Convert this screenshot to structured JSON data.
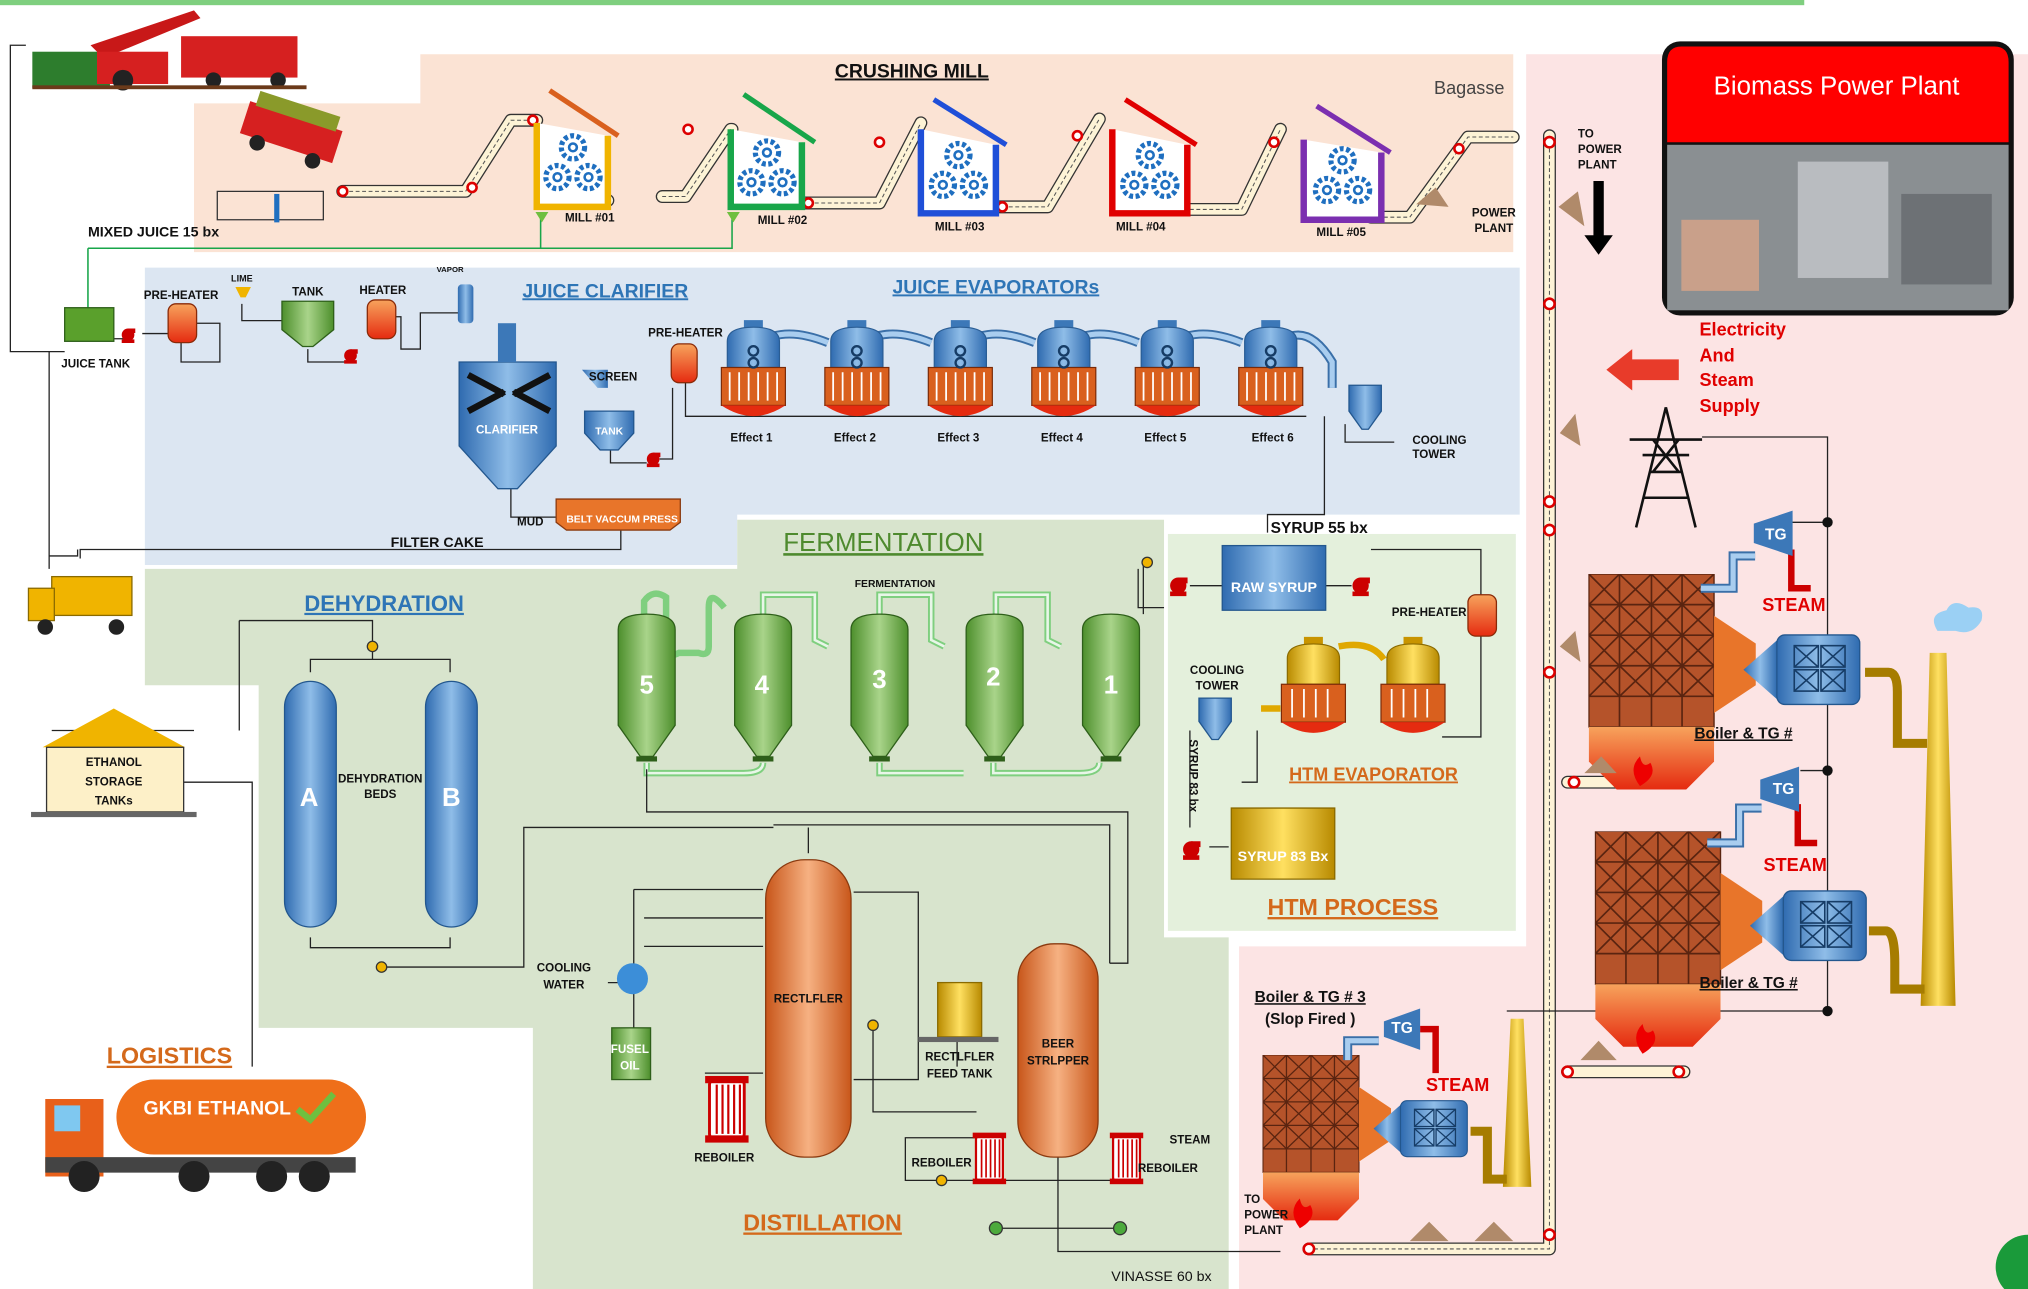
{
  "crushing_mill": {
    "title": "CRUSHING MILL",
    "bagasse": "Bagasse",
    "mills": [
      "MILL #01",
      "MILL #02",
      "MILL #03",
      "MILL #04",
      "MILL #05"
    ],
    "power_plant": [
      "POWER",
      "PLANT"
    ],
    "to_power_plant": [
      "TO",
      "POWER",
      "PLANT"
    ],
    "mixed_juice": "MIXED JUICE 15 bx"
  },
  "juice_clarifier": {
    "title": "JUICE CLARIFIER",
    "juice_tank": "JUICE TANK",
    "pre_heater": "PRE-HEATER",
    "lime": "LIME",
    "tank": "TANK",
    "heater": "HEATER",
    "vapor": "VAPOR",
    "clarifier": "CLARIFIER",
    "screen": "SCREEN",
    "screen_tank": "TANK",
    "mud": "MUD",
    "belt_press": "BELT VACCUM PRESS",
    "filter_cake": "FILTER CAKE"
  },
  "juice_evaporators": {
    "title": "JUICE EVAPORATORs",
    "pre_heater": "PRE-HEATER",
    "effects": [
      "Effect 1",
      "Effect 2",
      "Effect 3",
      "Effect 4",
      "Effect 5",
      "Effect 6"
    ],
    "cooling_tower": [
      "COOLING",
      "TOWER"
    ],
    "syrup": "SYRUP 55 bx"
  },
  "htm_process": {
    "title": "HTM PROCESS",
    "raw_syrup": "RAW SYRUP",
    "pre_heater": "PRE-HEATER",
    "cooling_tower": [
      "COOLING",
      "TOWER"
    ],
    "evaporator": "HTM EVAPORATOR",
    "syrup_line": "SYRUP 83 bx",
    "syrup_tank": "SYRUP 83 Bx"
  },
  "fermentation": {
    "title": "FERMENTATION",
    "label": "FERMENTATION",
    "tanks": [
      "5",
      "4",
      "3",
      "2",
      "1"
    ]
  },
  "dehydration": {
    "title": "DEHYDRATION",
    "beds": [
      "A",
      "B"
    ],
    "beds_label": [
      "DEHYDRATION",
      "BEDS"
    ]
  },
  "storage": {
    "label": [
      "ETHANOL",
      "STORAGE",
      "TANKs"
    ]
  },
  "logistics": {
    "title": "LOGISTICS",
    "truck": "GKBI ETHANOL"
  },
  "distillation": {
    "title": "DISTILLATION",
    "cooling_water": [
      "COOLING",
      "WATER"
    ],
    "fusel_oil": [
      "FUSEL",
      "OIL"
    ],
    "reboilers": [
      "REBOILER",
      "REBOILER",
      "REBOILER"
    ],
    "rectifier": "RECTLFLER",
    "feed_tank": [
      "RECTLFLER",
      "FEED TANK"
    ],
    "beer_stripper": [
      "BEER",
      "STRLPPER"
    ],
    "steam": "STEAM",
    "vinasse": "VINASSE 60 bx"
  },
  "power_plant": {
    "title": "Biomass Power Plant",
    "supply": [
      "Electricity",
      "And",
      "Steam",
      "Supply"
    ],
    "units": [
      {
        "tg": "TG",
        "steam": "STEAM",
        "label": [
          "Boiler & TG #"
        ]
      },
      {
        "tg": "TG",
        "steam": "STEAM",
        "label": [
          "Boiler & TG #"
        ]
      },
      {
        "tg": "TG",
        "steam": "STEAM",
        "label": [
          "Boiler & TG # 3",
          "(Slop Fired )"
        ]
      }
    ],
    "to_power_plant": [
      "TO",
      "POWER",
      "PLANT"
    ]
  }
}
